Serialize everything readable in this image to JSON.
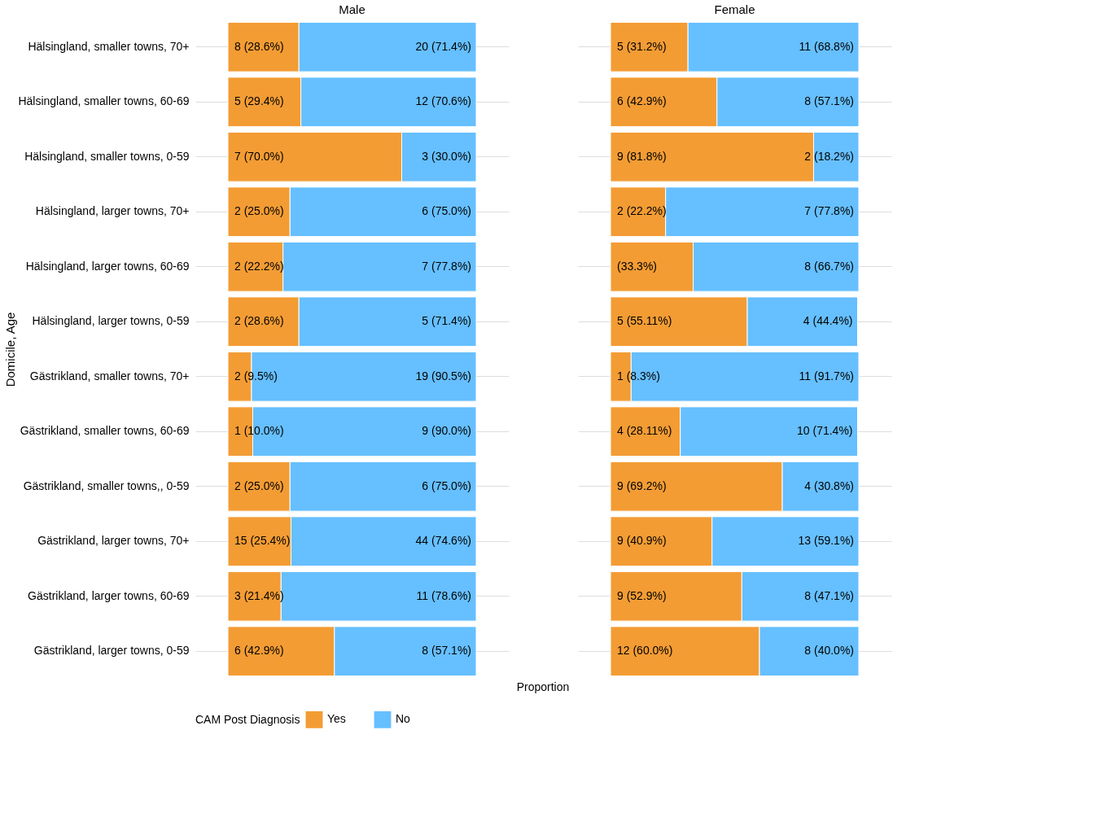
{
  "chart_data": [
    {
      "type": "bar",
      "orientation": "horizontal",
      "stacked": true,
      "xlim": [
        0,
        100
      ],
      "title": "Male",
      "ylabel": "Domicile, Age",
      "xlabel": "Proportion",
      "legend": "bottom",
      "legend_title": "CAM Post Diagnosis",
      "grid": "y",
      "tick_labels": "y",
      "categories": [
        "Hälsingland, smaller towns, 70+",
        "Hälsingland, smaller towns, 60-69",
        "Hälsingland, smaller towns, 0-59",
        "Hälsingland, larger towns, 70+",
        "Hälsingland, larger towns, 60-69",
        "Hälsingland, larger towns, 0-59",
        "Gästrikland, smaller towns, 70+",
        "Gästrikland, smaller towns, 60-69",
        "Gästrikland, smaller towns,, 0-59",
        "Gästrikland, larger towns, 70+",
        "Gästrikland, larger towns, 60-69",
        "Gästrikland, larger towns, 0-59"
      ],
      "series": [
        {
          "name": "Yes",
          "color": "#f39c34",
          "values": [
            28.6,
            29.4,
            70.0,
            25.0,
            22.2,
            28.6,
            9.5,
            10.0,
            25.0,
            25.4,
            21.4,
            42.9
          ],
          "value_labels": [
            "8 (28.6%)",
            "5 (29.4%)",
            "7 (70.0%)",
            "2 (25.0%)",
            "2 (22.2%)",
            "2 (28.6%)",
            "2 (9.5%)",
            "1 (10.0%)",
            "2 (25.0%)",
            "15 (25.4%)",
            "3 (21.4%)",
            "6 (42.9%)"
          ]
        },
        {
          "name": "No",
          "color": "#66bfff",
          "values": [
            71.4,
            70.6,
            30.0,
            75.0,
            77.8,
            71.4,
            90.5,
            90.0,
            75.0,
            74.6,
            78.6,
            57.1
          ],
          "value_labels": [
            "20 (71.4%)",
            "12 (70.6%)",
            "3 (30.0%)",
            "6 (75.0%)",
            "7 (77.8%)",
            "5 (71.4%)",
            "19 (90.5%)",
            "9 (90.0%)",
            "6 (75.0%)",
            "44 (74.6%)",
            "11 (78.6%)",
            "8 (57.1%)"
          ]
        }
      ]
    },
    {
      "type": "bar",
      "orientation": "horizontal",
      "stacked": true,
      "xlim": [
        0,
        100
      ],
      "title": "Female",
      "grid": "y",
      "tick_labels": false,
      "series": [
        {
          "name": "Yes",
          "color": "#f39c34",
          "values": [
            31.2,
            42.9,
            81.8,
            22.2,
            33.3,
            55.11,
            8.3,
            28.11,
            69.2,
            40.9,
            52.9,
            60.0
          ],
          "value_labels": [
            "5 (31.2%)",
            "6 (42.9%)",
            "9 (81.8%)",
            "2 (22.2%)",
            "(33.3%)",
            "5 (55.11%)",
            "1 (8.3%)",
            "4 (28.11%)",
            "9 (69.2%)",
            "9 (40.9%)",
            "9 (52.9%)",
            "12 (60.0%)"
          ]
        },
        {
          "name": "No",
          "color": "#66bfff",
          "values": [
            68.8,
            57.1,
            18.2,
            77.8,
            66.7,
            44.4,
            91.7,
            71.4,
            30.8,
            59.1,
            47.1,
            40.0
          ],
          "value_labels": [
            "11 (68.8%)",
            "8 (57.1%)",
            "2 (18.2%)",
            "7 (77.8%)",
            "8 (66.7%)",
            "4 (44.4%)",
            "11 (91.7%)",
            "10 (71.4%)",
            "4 (30.8%)",
            "13 (59.1%)",
            "8 (47.1%)",
            "8 (40.0%)"
          ]
        }
      ]
    }
  ]
}
